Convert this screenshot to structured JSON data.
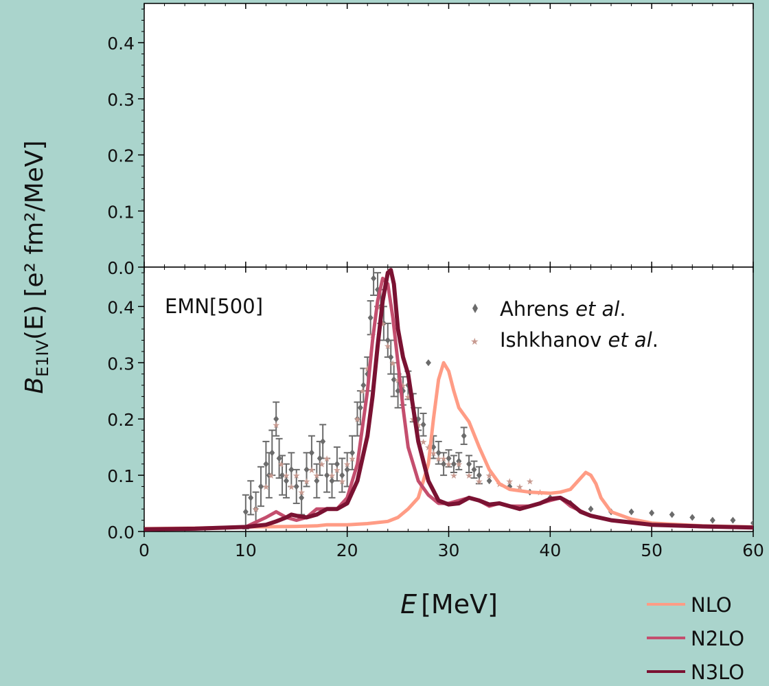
{
  "chart_data": {
    "type": "line",
    "xlabel_main": "E",
    "xlabel_unit": "[MeV]",
    "ylabel_prefix": "B",
    "ylabel_sub": "E1IV",
    "ylabel_suffix": "(E) [e² fm²/MeV]",
    "xlim": [
      0,
      60
    ],
    "xticks": [
      0,
      10,
      20,
      30,
      40,
      50,
      60
    ],
    "ylim": [
      0,
      0.47
    ],
    "yticks": [
      0.0,
      0.1,
      0.2,
      0.3,
      0.4
    ],
    "annotation": "EMN[500]",
    "data_legend": [
      {
        "name_main": "Ahrens ",
        "name_italic": "et al",
        "name_end": ".",
        "color": "#6b6b6b"
      },
      {
        "name_main": "Ishkhanov ",
        "name_italic": "et al",
        "name_end": ".",
        "color": "#c79a90"
      }
    ],
    "series": [
      {
        "name": "NLO",
        "color": "#ff9c85",
        "x": [
          0,
          5,
          10,
          15,
          17,
          18,
          20,
          22,
          24,
          25,
          26,
          27,
          28,
          28.5,
          29,
          29.5,
          30,
          30.5,
          31,
          32,
          33,
          34,
          35,
          36,
          38,
          40,
          41,
          42,
          43,
          43.5,
          44,
          44.5,
          45,
          46,
          48,
          50,
          55,
          60
        ],
        "y": [
          0.005,
          0.006,
          0.008,
          0.009,
          0.01,
          0.012,
          0.012,
          0.014,
          0.018,
          0.025,
          0.04,
          0.06,
          0.12,
          0.2,
          0.27,
          0.3,
          0.285,
          0.25,
          0.22,
          0.195,
          0.15,
          0.11,
          0.085,
          0.075,
          0.07,
          0.068,
          0.07,
          0.075,
          0.095,
          0.105,
          0.1,
          0.085,
          0.06,
          0.035,
          0.022,
          0.015,
          0.01,
          0.008
        ]
      },
      {
        "name": "N2LO",
        "color": "#c44e6e",
        "x": [
          0,
          5,
          10,
          12,
          13,
          14,
          15,
          16,
          17,
          18,
          19,
          20,
          21,
          22,
          22.5,
          23,
          23.5,
          24,
          24.5,
          25,
          25.5,
          26,
          27,
          28,
          29,
          30,
          31,
          32,
          33,
          34,
          35,
          36,
          38,
          40,
          41,
          42,
          44,
          46,
          48,
          50,
          55,
          60
        ],
        "y": [
          0.004,
          0.005,
          0.008,
          0.025,
          0.035,
          0.025,
          0.02,
          0.025,
          0.04,
          0.04,
          0.04,
          0.06,
          0.12,
          0.25,
          0.34,
          0.41,
          0.45,
          0.44,
          0.38,
          0.3,
          0.22,
          0.15,
          0.09,
          0.065,
          0.05,
          0.05,
          0.055,
          0.06,
          0.055,
          0.045,
          0.05,
          0.045,
          0.045,
          0.055,
          0.06,
          0.045,
          0.028,
          0.02,
          0.016,
          0.012,
          0.009,
          0.007
        ]
      },
      {
        "name": "N3LO",
        "color": "#7a1232",
        "x": [
          0,
          5,
          10,
          12,
          13,
          14,
          14.5,
          15,
          16,
          17,
          18,
          19,
          20,
          21,
          22,
          22.5,
          23,
          23.5,
          24,
          24.3,
          24.6,
          25,
          25.5,
          26,
          26.5,
          27,
          28,
          29,
          30,
          31,
          32,
          33,
          34,
          35,
          36,
          37,
          38,
          39,
          40,
          41,
          42,
          43,
          44,
          46,
          48,
          50,
          55,
          60
        ],
        "y": [
          0.004,
          0.005,
          0.008,
          0.012,
          0.018,
          0.025,
          0.03,
          0.028,
          0.025,
          0.03,
          0.04,
          0.04,
          0.05,
          0.09,
          0.17,
          0.24,
          0.33,
          0.41,
          0.46,
          0.465,
          0.44,
          0.36,
          0.31,
          0.28,
          0.22,
          0.16,
          0.09,
          0.055,
          0.048,
          0.05,
          0.06,
          0.055,
          0.048,
          0.05,
          0.045,
          0.04,
          0.045,
          0.05,
          0.058,
          0.06,
          0.05,
          0.035,
          0.028,
          0.02,
          0.016,
          0.012,
          0.009,
          0.007
        ]
      }
    ],
    "scatter": [
      {
        "name": "Ahrens et al.",
        "color": "#6b6b6b",
        "marker": "diamond",
        "x": [
          10,
          10.5,
          11,
          11.5,
          12,
          12.3,
          12.6,
          13,
          13.3,
          13.6,
          14,
          14.5,
          15,
          15.5,
          16,
          16.5,
          17,
          17.3,
          17.6,
          18,
          18.5,
          19,
          19.5,
          20,
          20.5,
          21,
          21.3,
          21.6,
          22,
          22.3,
          22.6,
          23,
          23.3,
          23.6,
          24,
          24.3,
          24.6,
          25,
          25.5,
          26,
          26.5,
          27,
          27.5,
          28,
          28.5,
          29,
          29.5,
          30,
          30.5,
          31,
          31.5,
          32,
          32.5,
          33,
          34,
          36,
          38,
          40,
          42,
          44,
          46,
          48,
          50,
          52,
          54,
          56,
          58,
          60
        ],
        "y": [
          0.035,
          0.06,
          0.04,
          0.08,
          0.12,
          0.1,
          0.14,
          0.2,
          0.13,
          0.1,
          0.09,
          0.11,
          0.08,
          0.06,
          0.11,
          0.14,
          0.09,
          0.13,
          0.16,
          0.1,
          0.09,
          0.12,
          0.1,
          0.11,
          0.14,
          0.2,
          0.22,
          0.26,
          0.28,
          0.38,
          0.45,
          0.43,
          0.4,
          0.37,
          0.34,
          0.31,
          0.27,
          0.25,
          0.25,
          0.26,
          0.22,
          0.2,
          0.19,
          0.3,
          0.15,
          0.14,
          0.12,
          0.13,
          0.12,
          0.125,
          0.17,
          0.12,
          0.11,
          0.1,
          0.09,
          0.08,
          0.07,
          0.06,
          0.05,
          0.04,
          0.035,
          0.035,
          0.033,
          0.03,
          0.025,
          0.02,
          0.02,
          0.015
        ],
        "err": [
          0.03,
          0.03,
          0.03,
          0.035,
          0.04,
          0.04,
          0.04,
          0.03,
          0.035,
          0.035,
          0.03,
          0.03,
          0.03,
          0.03,
          0.03,
          0.03,
          0.03,
          0.03,
          0.03,
          0.03,
          0.03,
          0.03,
          0.03,
          0.03,
          0.03,
          0.03,
          0.03,
          0.03,
          0.03,
          0.03,
          0.03,
          0.03,
          0.03,
          0.03,
          0.03,
          0.03,
          0.03,
          0.03,
          0.025,
          0.025,
          0.025,
          0.02,
          0.02,
          0,
          0.02,
          0.02,
          0.02,
          0.015,
          0.015,
          0.015,
          0.015,
          0.015,
          0.015,
          0.015,
          0,
          0,
          0,
          0,
          0,
          0,
          0,
          0,
          0,
          0,
          0,
          0,
          0,
          0
        ]
      },
      {
        "name": "Ishkhanov et al.",
        "color": "#c79a90",
        "marker": "star",
        "x": [
          11,
          12,
          12.5,
          13,
          13.5,
          14,
          14.5,
          15,
          15.5,
          16,
          16.5,
          17,
          17.5,
          18,
          18.5,
          19,
          19.5,
          20,
          20.5,
          21,
          21.5,
          22,
          22.5,
          23,
          23.5,
          24,
          24.5,
          25,
          25.5,
          26,
          26.5,
          27,
          27.5,
          28,
          28.5,
          29,
          29.5,
          30,
          30.5,
          31,
          32,
          33,
          34,
          35,
          36,
          37,
          38,
          39
        ],
        "y": [
          0.04,
          0.08,
          0.1,
          0.19,
          0.12,
          0.1,
          0.08,
          0.1,
          0.07,
          0.09,
          0.11,
          0.1,
          0.12,
          0.13,
          0.1,
          0.11,
          0.09,
          0.12,
          0.13,
          0.2,
          0.25,
          0.29,
          0.35,
          0.4,
          0.37,
          0.33,
          0.3,
          0.27,
          0.26,
          0.24,
          0.2,
          0.19,
          0.16,
          0.15,
          0.14,
          0.13,
          0.13,
          0.12,
          0.1,
          0.12,
          0.1,
          0.09,
          0.1,
          0.085,
          0.09,
          0.08,
          0.09,
          0.07
        ]
      }
    ]
  }
}
